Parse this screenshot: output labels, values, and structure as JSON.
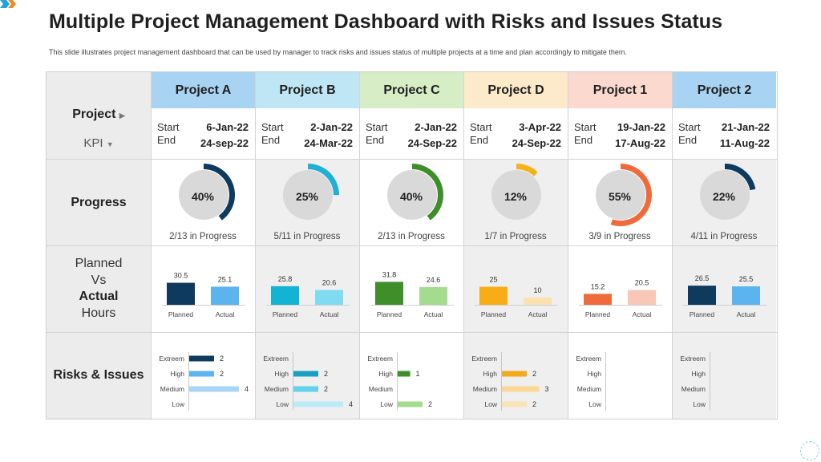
{
  "title": "Multiple Project Management Dashboard with Risks and Issues Status",
  "subtitle": "This slide illustrates project management dashboard that can be used by manager to track risks and issues status of multiple projects at a time and plan accordingly to mitigate them.",
  "row_labels": {
    "project": "Project",
    "kpi": "KPI",
    "progress": "Progress",
    "planned_line1": "Planned",
    "planned_line2": "Vs",
    "planned_line3": "Actual",
    "planned_line4": "Hours",
    "risks": "Risks & Issues"
  },
  "labels": {
    "start": "Start",
    "end": "End",
    "planned": "Planned",
    "actual": "Actual",
    "risk_levels": [
      "Extreem",
      "High",
      "Medium",
      "Low"
    ]
  },
  "projects": [
    {
      "name": "Project A",
      "header_color": "#a9d3f2",
      "start": "6-Jan-22",
      "end": "24-sep-22",
      "progress": 40,
      "progress_label": "40%",
      "progress_text": "2/13 in Progress",
      "ring_color": "#0e3a5e",
      "planned": 30.5,
      "actual": 25.1,
      "planned_label": "30.5",
      "actual_label": "25.1",
      "planned_color": "#0e3a5e",
      "actual_color": "#5bb3ef",
      "risks": [
        2,
        2,
        4,
        null
      ],
      "risk_colors": [
        "#0e3a5e",
        "#5bb3ef",
        "#a9d6f5",
        "#a9d6f5"
      ]
    },
    {
      "name": "Project B",
      "header_color": "#bfe6f5",
      "start": "2-Jan-22",
      "end": "24-Mar-22",
      "progress": 25,
      "progress_label": "25%",
      "progress_text": "5/11 in Progress",
      "ring_color": "#1fb0d6",
      "planned": 25.8,
      "actual": 20.6,
      "planned_label": "25.8",
      "actual_label": "20.6",
      "planned_color": "#13b3d3",
      "actual_color": "#7fdcf0",
      "risks": [
        null,
        2,
        2,
        4
      ],
      "risk_colors": [
        "#1a9fc4",
        "#1a9fc4",
        "#62d2ec",
        "#bdeaf7"
      ]
    },
    {
      "name": "Project C",
      "header_color": "#d6edc6",
      "start": "2-Jan-22",
      "end": "24-Sep-22",
      "progress": 40,
      "progress_label": "40%",
      "progress_text": "2/13 in Progress",
      "ring_color": "#3e8f2a",
      "planned": 31.8,
      "actual": 24.6,
      "planned_label": "31.8",
      "actual_label": "24.6",
      "planned_color": "#3e8f2a",
      "actual_color": "#a5db8f",
      "risks": [
        null,
        1,
        null,
        2
      ],
      "risk_colors": [
        "#3e8f2a",
        "#3e8f2a",
        "#a5db8f",
        "#a5db8f"
      ]
    },
    {
      "name": "Project D",
      "header_color": "#fdeacb",
      "start": "3-Apr-22",
      "end": "24-Sep-22",
      "progress": 12,
      "progress_label": "12%",
      "progress_text": "1/7 in Progress",
      "ring_color": "#f6b21b",
      "planned": 25,
      "actual": 10,
      "planned_label": "25",
      "actual_label": "10",
      "planned_color": "#f8ad17",
      "actual_color": "#fbe1b0",
      "risks": [
        null,
        2,
        3,
        2
      ],
      "risk_colors": [
        "#f4ab1a",
        "#f4ab1a",
        "#fbd894",
        "#fbe3b8"
      ]
    },
    {
      "name": "Project 1",
      "header_color": "#fbd9cf",
      "start": "19-Jan-22",
      "end": "17-Aug-22",
      "progress": 55,
      "progress_label": "55%",
      "progress_text": "3/9 in Progress",
      "ring_color": "#f06a3c",
      "planned": 15.2,
      "actual": 20.5,
      "planned_label": "15.2",
      "actual_label": "20.5",
      "planned_color": "#f06a3c",
      "actual_color": "#f9c7b5",
      "risks": [
        null,
        null,
        null,
        null
      ],
      "risk_colors": [
        "#f06a3c",
        "#f06a3c",
        "#f9c7b5",
        "#f9c7b5"
      ]
    },
    {
      "name": "Project 2",
      "header_color": "#a9d3f2",
      "start": "21-Jan-22",
      "end": "11-Aug-22",
      "progress": 22,
      "progress_label": "22%",
      "progress_text": "4/11 in Progress",
      "ring_color": "#0e3a5e",
      "planned": 26.5,
      "actual": 25.5,
      "planned_label": "26.5",
      "actual_label": "25.5",
      "planned_color": "#0e3a5e",
      "actual_color": "#5bb3ef",
      "risks": [
        null,
        null,
        null,
        null
      ],
      "risk_colors": [
        "#0e3a5e",
        "#5bb3ef",
        "#a9d6f5",
        "#a9d6f5"
      ]
    }
  ],
  "icons": {
    "project_arrow": "caret-right-icon",
    "kpi_arrow": "caret-down-icon"
  }
}
